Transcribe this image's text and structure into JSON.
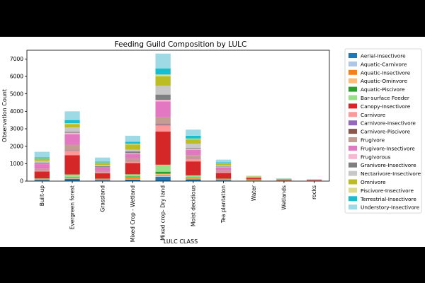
{
  "chart_data": {
    "type": "bar",
    "stacked": true,
    "title": "Feeding Guild Composition by LULC",
    "xlabel": "LULC CLASS",
    "ylabel": "Observation Count",
    "ylim": [
      0,
      7500
    ],
    "yticks": [
      0,
      1000,
      2000,
      3000,
      4000,
      5000,
      6000,
      7000
    ],
    "grid": false,
    "legend_position": "right, outside",
    "categories": [
      "Built-up",
      "Evergreen forest",
      "Grassland",
      "Mixed Crop - Wetland",
      "Mixed crop- Dry land",
      "Moist decidious",
      "Tea plantation",
      "Water",
      "Wetlands",
      "rocks"
    ],
    "series": [
      {
        "name": "Aerial-Insectivore",
        "color": "#1f77b4",
        "values": [
          60,
          130,
          50,
          90,
          250,
          100,
          50,
          20,
          10,
          5
        ]
      },
      {
        "name": "Aquatic-Carnivore",
        "color": "#aec7e8",
        "values": [
          10,
          20,
          10,
          30,
          40,
          20,
          10,
          10,
          5,
          0
        ]
      },
      {
        "name": "Aquatic-Insectivore",
        "color": "#ff7f0e",
        "values": [
          10,
          20,
          10,
          40,
          50,
          20,
          10,
          20,
          10,
          5
        ]
      },
      {
        "name": "Aquatic-Ominvore",
        "color": "#ffbb78",
        "values": [
          10,
          20,
          10,
          50,
          80,
          30,
          10,
          20,
          10,
          5
        ]
      },
      {
        "name": "Aquatic-Piscivore",
        "color": "#2ca02c",
        "values": [
          20,
          40,
          20,
          60,
          120,
          40,
          20,
          30,
          10,
          5
        ]
      },
      {
        "name": "Bar-surface Feeder",
        "color": "#98df8a",
        "values": [
          40,
          150,
          40,
          120,
          400,
          120,
          40,
          10,
          5,
          5
        ]
      },
      {
        "name": "Canopy-Insectivore",
        "color": "#d62728",
        "values": [
          400,
          1100,
          310,
          650,
          1900,
          800,
          330,
          70,
          40,
          30
        ]
      },
      {
        "name": "Carnivore",
        "color": "#ff9896",
        "values": [
          50,
          250,
          50,
          80,
          350,
          150,
          50,
          20,
          10,
          5
        ]
      },
      {
        "name": "Carnivore-Insectivore",
        "color": "#9467bd",
        "values": [
          10,
          20,
          10,
          10,
          40,
          20,
          10,
          0,
          0,
          0
        ]
      },
      {
        "name": "Carnivore-Piscivore",
        "color": "#8c564b",
        "values": [
          10,
          20,
          10,
          20,
          30,
          10,
          10,
          10,
          5,
          0
        ]
      },
      {
        "name": "Frugivore",
        "color": "#c49c94",
        "values": [
          100,
          320,
          70,
          150,
          400,
          180,
          80,
          10,
          5,
          5
        ]
      },
      {
        "name": "Frugivore-Insectivore",
        "color": "#e377c2",
        "values": [
          250,
          600,
          180,
          250,
          900,
          300,
          150,
          10,
          5,
          5
        ]
      },
      {
        "name": "Frugivorous",
        "color": "#f7b6d2",
        "values": [
          30,
          80,
          20,
          50,
          100,
          50,
          30,
          0,
          0,
          0
        ]
      },
      {
        "name": "Granivore-Insectivore",
        "color": "#7f7f7f",
        "values": [
          60,
          50,
          60,
          100,
          300,
          50,
          30,
          10,
          5,
          5
        ]
      },
      {
        "name": "Nectarivore-Insectivore",
        "color": "#c7c7c7",
        "values": [
          100,
          250,
          80,
          100,
          500,
          250,
          80,
          10,
          5,
          5
        ]
      },
      {
        "name": "Omnivore",
        "color": "#bcbd22",
        "values": [
          120,
          200,
          120,
          300,
          550,
          250,
          100,
          20,
          10,
          5
        ]
      },
      {
        "name": "Piscivore-Insectivore",
        "color": "#dbdb8d",
        "values": [
          20,
          50,
          20,
          40,
          100,
          50,
          20,
          10,
          5,
          5
        ]
      },
      {
        "name": "Terrestrial-Insectivore",
        "color": "#17becf",
        "values": [
          60,
          180,
          50,
          120,
          350,
          160,
          50,
          10,
          5,
          5
        ]
      },
      {
        "name": "Understory-Insectivore",
        "color": "#9edae5",
        "values": [
          320,
          500,
          230,
          340,
          850,
          350,
          150,
          20,
          20,
          20
        ]
      }
    ]
  }
}
